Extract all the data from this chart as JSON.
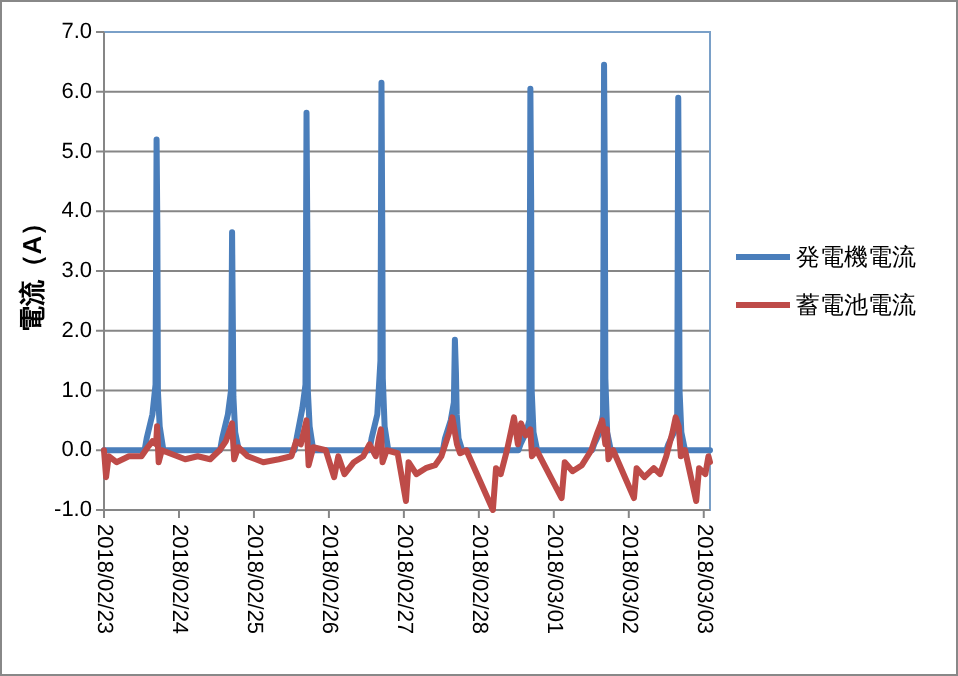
{
  "chart_data": {
    "type": "line",
    "ylabel": "電流（A）",
    "xlim": [
      "2018-02-23T00:00",
      "2018-03-03T02:00"
    ],
    "xticks": [
      {
        "value": "2018-02-23",
        "label": "2018/02/23"
      },
      {
        "value": "2018-02-24",
        "label": "2018/02/24"
      },
      {
        "value": "2018-02-25",
        "label": "2018/02/25"
      },
      {
        "value": "2018-02-26",
        "label": "2018/02/26"
      },
      {
        "value": "2018-02-27",
        "label": "2018/02/27"
      },
      {
        "value": "2018-02-28",
        "label": "2018/02/28"
      },
      {
        "value": "2018-03-01",
        "label": "2018/03/01"
      },
      {
        "value": "2018-03-02",
        "label": "2018/03/02"
      },
      {
        "value": "2018-03-03",
        "label": "2018/03/03"
      }
    ],
    "ylim": [
      -1.0,
      7.0
    ],
    "yticks": [
      {
        "value": -1,
        "label": "-1.0"
      },
      {
        "value": 0,
        "label": "0.0"
      },
      {
        "value": 1,
        "label": "1.0"
      },
      {
        "value": 2,
        "label": "2.0"
      },
      {
        "value": 3,
        "label": "3.0"
      },
      {
        "value": 4,
        "label": "4.0"
      },
      {
        "value": 5,
        "label": "5.0"
      },
      {
        "value": 6,
        "label": "6.0"
      },
      {
        "value": 7,
        "label": "7.0"
      }
    ],
    "grid": "y",
    "legend": "right",
    "marker": "none",
    "line_style": "solid",
    "series": [
      {
        "name": "発電機電流",
        "color": "#4a7ebb",
        "x": [
          "2018-02-23T00:00",
          "2018-02-23T13:00",
          "2018-02-23T13:40",
          "2018-02-23T15:30",
          "2018-02-23T16:30",
          "2018-02-23T16:50",
          "2018-02-23T17:05",
          "2018-02-23T17:15",
          "2018-02-23T17:50",
          "2018-02-23T19:00",
          "2018-02-24T13:10",
          "2018-02-24T13:50",
          "2018-02-24T15:40",
          "2018-02-24T16:40",
          "2018-02-24T17:00",
          "2018-02-24T17:15",
          "2018-02-24T17:25",
          "2018-02-24T18:00",
          "2018-02-24T19:10",
          "2018-02-25T13:00",
          "2018-02-25T13:40",
          "2018-02-25T15:30",
          "2018-02-25T16:30",
          "2018-02-25T16:50",
          "2018-02-25T17:05",
          "2018-02-25T17:15",
          "2018-02-25T17:50",
          "2018-02-25T19:00",
          "2018-02-26T13:00",
          "2018-02-26T13:40",
          "2018-02-26T15:30",
          "2018-02-26T16:30",
          "2018-02-26T16:50",
          "2018-02-26T17:05",
          "2018-02-26T17:15",
          "2018-02-26T17:50",
          "2018-02-26T19:00",
          "2018-02-27T12:30",
          "2018-02-27T13:10",
          "2018-02-27T15:00",
          "2018-02-27T16:00",
          "2018-02-27T16:20",
          "2018-02-27T16:40",
          "2018-02-27T16:55",
          "2018-02-27T17:30",
          "2018-02-27T18:40",
          "2018-02-28T12:40",
          "2018-02-28T13:20",
          "2018-02-28T15:10",
          "2018-02-28T16:10",
          "2018-02-28T16:30",
          "2018-02-28T16:45",
          "2018-02-28T16:55",
          "2018-02-28T17:30",
          "2018-02-28T18:40",
          "2018-03-01T12:15",
          "2018-03-01T12:55",
          "2018-03-01T14:45",
          "2018-03-01T15:45",
          "2018-03-01T16:05",
          "2018-03-01T16:20",
          "2018-03-01T16:30",
          "2018-03-01T17:05",
          "2018-03-01T18:15",
          "2018-03-02T12:00",
          "2018-03-02T12:40",
          "2018-03-02T14:30",
          "2018-03-02T15:30",
          "2018-03-02T15:50",
          "2018-03-02T16:05",
          "2018-03-02T16:15",
          "2018-03-02T16:50",
          "2018-03-02T18:00",
          "2018-03-03T02:00"
        ],
        "values": [
          0.0,
          0.0,
          0.2,
          0.6,
          1.1,
          5.2,
          3.7,
          1.0,
          0.4,
          0.0,
          0.0,
          0.2,
          0.6,
          1.0,
          3.65,
          2.1,
          0.9,
          0.3,
          0.0,
          0.0,
          0.2,
          0.7,
          1.1,
          5.65,
          3.7,
          1.0,
          0.4,
          0.0,
          0.0,
          0.2,
          0.6,
          1.5,
          6.15,
          3.7,
          1.2,
          0.4,
          0.0,
          0.0,
          0.2,
          0.5,
          0.8,
          1.85,
          1.3,
          0.6,
          0.2,
          0.0,
          0.0,
          0.1,
          0.3,
          0.5,
          6.05,
          4.2,
          1.0,
          0.3,
          0.0,
          0.0,
          0.1,
          0.3,
          0.6,
          6.45,
          4.3,
          1.2,
          0.3,
          0.0,
          0.0,
          0.1,
          0.3,
          0.6,
          5.9,
          3.45,
          1.0,
          0.3,
          0.0,
          0.0
        ]
      },
      {
        "name": "蓄電池電流",
        "color": "#be4b48",
        "x": [
          "2018-02-23T00:00",
          "2018-02-23T00:40",
          "2018-02-23T01:30",
          "2018-02-23T04:00",
          "2018-02-23T08:00",
          "2018-02-23T12:00",
          "2018-02-23T14:00",
          "2018-02-23T15:30",
          "2018-02-23T16:40",
          "2018-02-23T17:00",
          "2018-02-23T17:30",
          "2018-02-23T18:30",
          "2018-02-23T21:00",
          "2018-02-24T02:00",
          "2018-02-24T06:00",
          "2018-02-24T10:00",
          "2018-02-24T13:00",
          "2018-02-24T15:00",
          "2018-02-24T17:00",
          "2018-02-24T17:40",
          "2018-02-24T19:00",
          "2018-02-24T22:00",
          "2018-02-25T03:00",
          "2018-02-25T08:00",
          "2018-02-25T12:00",
          "2018-02-25T13:30",
          "2018-02-25T15:00",
          "2018-02-25T16:50",
          "2018-02-25T17:30",
          "2018-02-25T19:00",
          "2018-02-25T23:00",
          "2018-02-26T01:40",
          "2018-02-26T03:00",
          "2018-02-26T05:00",
          "2018-02-26T08:00",
          "2018-02-26T11:00",
          "2018-02-26T13:00",
          "2018-02-26T15:00",
          "2018-02-26T16:00",
          "2018-02-26T16:40",
          "2018-02-26T17:10",
          "2018-02-26T18:30",
          "2018-02-26T22:00",
          "2018-02-27T00:40",
          "2018-02-27T01:30",
          "2018-02-27T04:00",
          "2018-02-27T07:00",
          "2018-02-27T10:00",
          "2018-02-27T12:00",
          "2018-02-27T14:30",
          "2018-02-27T15:30",
          "2018-02-27T17:00",
          "2018-02-27T18:00",
          "2018-02-27T20:00",
          "2018-02-28T04:30",
          "2018-02-28T05:30",
          "2018-02-28T07:00",
          "2018-02-28T09:00",
          "2018-02-28T11:15",
          "2018-02-28T12:30",
          "2018-02-28T13:30",
          "2018-02-28T15:00",
          "2018-02-28T16:30",
          "2018-02-28T17:00",
          "2018-02-28T18:30",
          "2018-03-01T02:30",
          "2018-03-01T03:30",
          "2018-03-01T06:00",
          "2018-03-01T09:00",
          "2018-03-01T12:00",
          "2018-03-01T14:00",
          "2018-03-01T15:30",
          "2018-03-01T16:30",
          "2018-03-01T17:00",
          "2018-03-01T17:30",
          "2018-03-01T19:00",
          "2018-03-02T01:40",
          "2018-03-02T02:30",
          "2018-03-02T05:00",
          "2018-03-02T08:00",
          "2018-03-02T10:00",
          "2018-03-02T12:00",
          "2018-03-02T14:00",
          "2018-03-02T15:00",
          "2018-03-02T16:00",
          "2018-03-02T16:40",
          "2018-03-02T18:00",
          "2018-03-02T21:35",
          "2018-03-02T22:30",
          "2018-03-03T00:30",
          "2018-03-03T01:30",
          "2018-03-03T02:00"
        ],
        "values": [
          0.0,
          -0.45,
          -0.1,
          -0.2,
          -0.1,
          -0.1,
          0.05,
          0.15,
          0.1,
          0.4,
          -0.2,
          0.0,
          -0.05,
          -0.15,
          -0.1,
          -0.15,
          0.0,
          0.15,
          0.45,
          -0.15,
          0.05,
          -0.1,
          -0.2,
          -0.15,
          -0.1,
          0.15,
          0.1,
          0.5,
          -0.25,
          0.05,
          0.0,
          -0.45,
          -0.1,
          -0.4,
          -0.2,
          -0.1,
          0.1,
          -0.1,
          0.2,
          0.35,
          -0.2,
          0.0,
          -0.05,
          -0.85,
          -0.2,
          -0.4,
          -0.3,
          -0.25,
          -0.1,
          0.3,
          0.55,
          0.1,
          -0.05,
          0.0,
          -1.0,
          -0.3,
          -0.4,
          0.0,
          0.55,
          0.1,
          0.45,
          0.25,
          0.35,
          -0.1,
          0.0,
          -0.8,
          -0.2,
          -0.35,
          -0.25,
          0.0,
          0.3,
          0.5,
          0.1,
          0.35,
          -0.15,
          0.0,
          -0.8,
          -0.3,
          -0.45,
          -0.3,
          -0.4,
          -0.1,
          0.3,
          0.55,
          0.4,
          -0.1,
          0.0,
          -0.85,
          -0.3,
          -0.4,
          -0.1,
          -0.2
        ]
      }
    ]
  }
}
